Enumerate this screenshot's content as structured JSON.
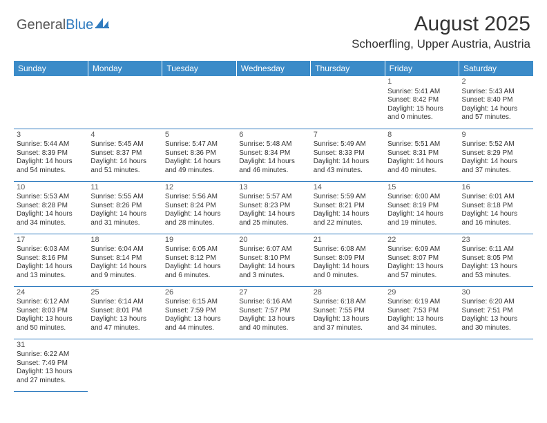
{
  "brand": {
    "general": "General",
    "blue": "Blue"
  },
  "title": "August 2025",
  "location": "Schoerfling, Upper Austria, Austria",
  "colors": {
    "headerBg": "#3b8bc8",
    "rule": "#2f7bbf"
  },
  "weekdays": [
    "Sunday",
    "Monday",
    "Tuesday",
    "Wednesday",
    "Thursday",
    "Friday",
    "Saturday"
  ],
  "days": {
    "1": {
      "sr": "Sunrise: 5:41 AM",
      "ss": "Sunset: 8:42 PM",
      "dl": "Daylight: 15 hours and 0 minutes."
    },
    "2": {
      "sr": "Sunrise: 5:43 AM",
      "ss": "Sunset: 8:40 PM",
      "dl": "Daylight: 14 hours and 57 minutes."
    },
    "3": {
      "sr": "Sunrise: 5:44 AM",
      "ss": "Sunset: 8:39 PM",
      "dl": "Daylight: 14 hours and 54 minutes."
    },
    "4": {
      "sr": "Sunrise: 5:45 AM",
      "ss": "Sunset: 8:37 PM",
      "dl": "Daylight: 14 hours and 51 minutes."
    },
    "5": {
      "sr": "Sunrise: 5:47 AM",
      "ss": "Sunset: 8:36 PM",
      "dl": "Daylight: 14 hours and 49 minutes."
    },
    "6": {
      "sr": "Sunrise: 5:48 AM",
      "ss": "Sunset: 8:34 PM",
      "dl": "Daylight: 14 hours and 46 minutes."
    },
    "7": {
      "sr": "Sunrise: 5:49 AM",
      "ss": "Sunset: 8:33 PM",
      "dl": "Daylight: 14 hours and 43 minutes."
    },
    "8": {
      "sr": "Sunrise: 5:51 AM",
      "ss": "Sunset: 8:31 PM",
      "dl": "Daylight: 14 hours and 40 minutes."
    },
    "9": {
      "sr": "Sunrise: 5:52 AM",
      "ss": "Sunset: 8:29 PM",
      "dl": "Daylight: 14 hours and 37 minutes."
    },
    "10": {
      "sr": "Sunrise: 5:53 AM",
      "ss": "Sunset: 8:28 PM",
      "dl": "Daylight: 14 hours and 34 minutes."
    },
    "11": {
      "sr": "Sunrise: 5:55 AM",
      "ss": "Sunset: 8:26 PM",
      "dl": "Daylight: 14 hours and 31 minutes."
    },
    "12": {
      "sr": "Sunrise: 5:56 AM",
      "ss": "Sunset: 8:24 PM",
      "dl": "Daylight: 14 hours and 28 minutes."
    },
    "13": {
      "sr": "Sunrise: 5:57 AM",
      "ss": "Sunset: 8:23 PM",
      "dl": "Daylight: 14 hours and 25 minutes."
    },
    "14": {
      "sr": "Sunrise: 5:59 AM",
      "ss": "Sunset: 8:21 PM",
      "dl": "Daylight: 14 hours and 22 minutes."
    },
    "15": {
      "sr": "Sunrise: 6:00 AM",
      "ss": "Sunset: 8:19 PM",
      "dl": "Daylight: 14 hours and 19 minutes."
    },
    "16": {
      "sr": "Sunrise: 6:01 AM",
      "ss": "Sunset: 8:18 PM",
      "dl": "Daylight: 14 hours and 16 minutes."
    },
    "17": {
      "sr": "Sunrise: 6:03 AM",
      "ss": "Sunset: 8:16 PM",
      "dl": "Daylight: 14 hours and 13 minutes."
    },
    "18": {
      "sr": "Sunrise: 6:04 AM",
      "ss": "Sunset: 8:14 PM",
      "dl": "Daylight: 14 hours and 9 minutes."
    },
    "19": {
      "sr": "Sunrise: 6:05 AM",
      "ss": "Sunset: 8:12 PM",
      "dl": "Daylight: 14 hours and 6 minutes."
    },
    "20": {
      "sr": "Sunrise: 6:07 AM",
      "ss": "Sunset: 8:10 PM",
      "dl": "Daylight: 14 hours and 3 minutes."
    },
    "21": {
      "sr": "Sunrise: 6:08 AM",
      "ss": "Sunset: 8:09 PM",
      "dl": "Daylight: 14 hours and 0 minutes."
    },
    "22": {
      "sr": "Sunrise: 6:09 AM",
      "ss": "Sunset: 8:07 PM",
      "dl": "Daylight: 13 hours and 57 minutes."
    },
    "23": {
      "sr": "Sunrise: 6:11 AM",
      "ss": "Sunset: 8:05 PM",
      "dl": "Daylight: 13 hours and 53 minutes."
    },
    "24": {
      "sr": "Sunrise: 6:12 AM",
      "ss": "Sunset: 8:03 PM",
      "dl": "Daylight: 13 hours and 50 minutes."
    },
    "25": {
      "sr": "Sunrise: 6:14 AM",
      "ss": "Sunset: 8:01 PM",
      "dl": "Daylight: 13 hours and 47 minutes."
    },
    "26": {
      "sr": "Sunrise: 6:15 AM",
      "ss": "Sunset: 7:59 PM",
      "dl": "Daylight: 13 hours and 44 minutes."
    },
    "27": {
      "sr": "Sunrise: 6:16 AM",
      "ss": "Sunset: 7:57 PM",
      "dl": "Daylight: 13 hours and 40 minutes."
    },
    "28": {
      "sr": "Sunrise: 6:18 AM",
      "ss": "Sunset: 7:55 PM",
      "dl": "Daylight: 13 hours and 37 minutes."
    },
    "29": {
      "sr": "Sunrise: 6:19 AM",
      "ss": "Sunset: 7:53 PM",
      "dl": "Daylight: 13 hours and 34 minutes."
    },
    "30": {
      "sr": "Sunrise: 6:20 AM",
      "ss": "Sunset: 7:51 PM",
      "dl": "Daylight: 13 hours and 30 minutes."
    },
    "31": {
      "sr": "Sunrise: 6:22 AM",
      "ss": "Sunset: 7:49 PM",
      "dl": "Daylight: 13 hours and 27 minutes."
    }
  },
  "grid": [
    [
      "",
      "",
      "",
      "",
      "",
      "1",
      "2"
    ],
    [
      "3",
      "4",
      "5",
      "6",
      "7",
      "8",
      "9"
    ],
    [
      "10",
      "11",
      "12",
      "13",
      "14",
      "15",
      "16"
    ],
    [
      "17",
      "18",
      "19",
      "20",
      "21",
      "22",
      "23"
    ],
    [
      "24",
      "25",
      "26",
      "27",
      "28",
      "29",
      "30"
    ],
    [
      "31",
      "",
      "",
      "",
      "",
      "",
      ""
    ]
  ]
}
